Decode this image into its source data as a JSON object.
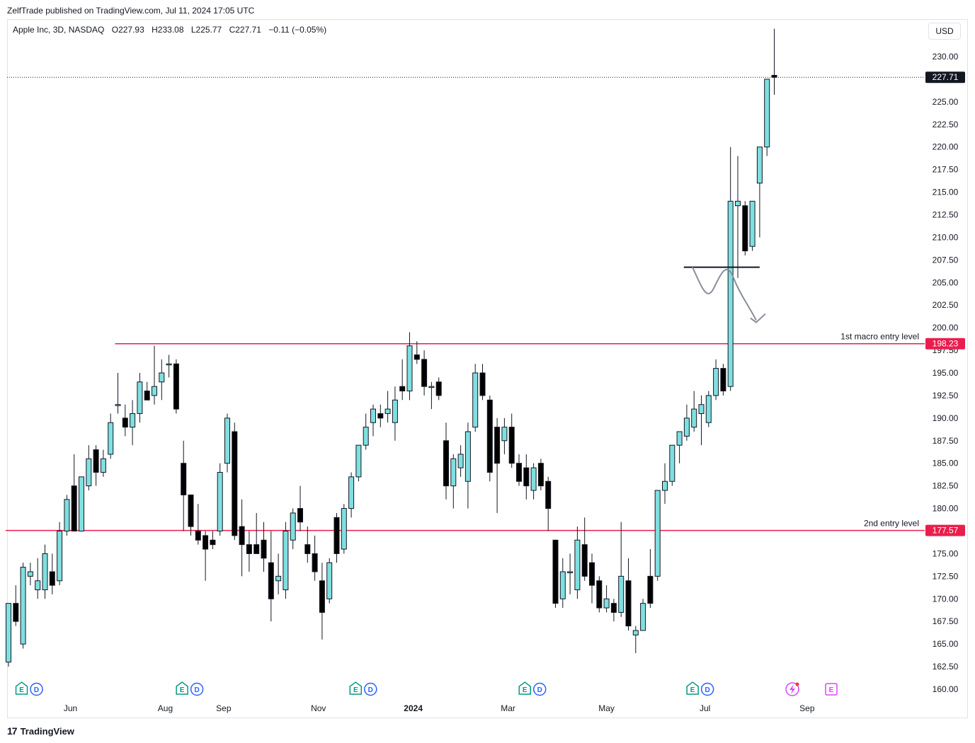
{
  "header": {
    "published": "ZelfTrade published on TradingView.com, Jul 11, 2024 17:05 UTC"
  },
  "legend": {
    "symbol": "Apple Inc, 3D, NASDAQ",
    "open": "O227.93",
    "high": "H233.08",
    "low": "L225.77",
    "close": "C227.71",
    "change": "−0.11 (−0.05%)"
  },
  "currency_button": "USD",
  "footer": {
    "brand": "TradingView"
  },
  "colors": {
    "up_body": "#80dfe0",
    "down_body": "#000000",
    "level_line": "#e91e4d",
    "price_tag": "#131722",
    "event_green": "#089981",
    "event_blue": "#2962ff",
    "event_purple": "#e040fb"
  },
  "event_icons": [
    "earnings-icon",
    "dividend-icon",
    "split-icon"
  ],
  "chart_data": {
    "type": "candlestick",
    "symbol": "Apple Inc, 3D, NASDAQ",
    "y_range": [
      160,
      233.5
    ],
    "y_ticks": [
      "160.00",
      "162.50",
      "165.00",
      "167.50",
      "170.00",
      "172.50",
      "175.00",
      "177.50",
      "180.00",
      "182.50",
      "185.00",
      "187.50",
      "190.00",
      "192.50",
      "195.00",
      "197.50",
      "200.00",
      "202.50",
      "205.00",
      "207.50",
      "210.00",
      "212.50",
      "215.00",
      "217.50",
      "220.00",
      "222.50",
      "225.00",
      "227.50",
      "230.00"
    ],
    "x_labels": [
      {
        "label": "Jun",
        "bar": 8.5
      },
      {
        "label": "Aug",
        "bar": 21.5
      },
      {
        "label": "Sep",
        "bar": 29.5
      },
      {
        "label": "Nov",
        "bar": 42.5
      },
      {
        "label": "2024",
        "bar": 55.5,
        "bold": true
      },
      {
        "label": "Mar",
        "bar": 68.5
      },
      {
        "label": "May",
        "bar": 82
      },
      {
        "label": "Jul",
        "bar": 95.5
      },
      {
        "label": "Sep",
        "bar": 109.5
      }
    ],
    "last_price": {
      "value": 227.71,
      "label": "227.71"
    },
    "levels": [
      {
        "value": 198.23,
        "label": "198.23",
        "text": "1st macro entry level",
        "from_bar": 15
      },
      {
        "value": 177.57,
        "label": "177.57",
        "text": "2nd entry level",
        "from_bar": 0
      }
    ],
    "support_line": {
      "value": 206.7,
      "from_bar": 92.6,
      "to_bar": 103
    },
    "candles": [
      {
        "o": 163,
        "h": 169.5,
        "l": 162.5,
        "c": 169.5
      },
      {
        "o": 169.5,
        "h": 171.5,
        "l": 167,
        "c": 167.5
      },
      {
        "o": 165,
        "h": 174,
        "l": 164.5,
        "c": 173.5
      },
      {
        "o": 172.5,
        "h": 174,
        "l": 171.5,
        "c": 173
      },
      {
        "o": 171,
        "h": 174.5,
        "l": 170,
        "c": 172
      },
      {
        "o": 171,
        "h": 176,
        "l": 170,
        "c": 175
      },
      {
        "o": 173,
        "h": 175,
        "l": 170.5,
        "c": 171.5
      },
      {
        "o": 172,
        "h": 178.5,
        "l": 171.5,
        "c": 177.5
      },
      {
        "o": 177.5,
        "h": 181.5,
        "l": 177,
        "c": 181
      },
      {
        "o": 182.5,
        "h": 186,
        "l": 177.5,
        "c": 177.5
      },
      {
        "o": 177.5,
        "h": 183.5,
        "l": 177.5,
        "c": 183.5
      },
      {
        "o": 182.5,
        "h": 187,
        "l": 182,
        "c": 185.5
      },
      {
        "o": 186.5,
        "h": 187,
        "l": 182.5,
        "c": 184
      },
      {
        "o": 184,
        "h": 186.5,
        "l": 183.5,
        "c": 185.5
      },
      {
        "o": 186,
        "h": 190.5,
        "l": 185.5,
        "c": 189.5
      },
      {
        "o": 191.5,
        "h": 195,
        "l": 190.5,
        "c": 191.5
      },
      {
        "o": 190,
        "h": 191.5,
        "l": 188,
        "c": 189
      },
      {
        "o": 189,
        "h": 192,
        "l": 187,
        "c": 190.5
      },
      {
        "o": 190.5,
        "h": 195,
        "l": 189.5,
        "c": 194
      },
      {
        "o": 193,
        "h": 194,
        "l": 192,
        "c": 192
      },
      {
        "o": 192.5,
        "h": 198,
        "l": 191.5,
        "c": 193.5
      },
      {
        "o": 194,
        "h": 196.5,
        "l": 192,
        "c": 195
      },
      {
        "o": 196,
        "h": 197,
        "l": 194.5,
        "c": 196
      },
      {
        "o": 196,
        "h": 196.5,
        "l": 190.5,
        "c": 191
      },
      {
        "o": 185,
        "h": 187.5,
        "l": 177.5,
        "c": 181.5
      },
      {
        "o": 181.5,
        "h": 181.5,
        "l": 177,
        "c": 178
      },
      {
        "o": 177.5,
        "h": 180.5,
        "l": 176,
        "c": 176.5
      },
      {
        "o": 177,
        "h": 177.5,
        "l": 172,
        "c": 175.5
      },
      {
        "o": 176.5,
        "h": 177.5,
        "l": 175.5,
        "c": 176
      },
      {
        "o": 177.5,
        "h": 185,
        "l": 177,
        "c": 184
      },
      {
        "o": 185,
        "h": 190.5,
        "l": 184,
        "c": 190
      },
      {
        "o": 188.5,
        "h": 189.5,
        "l": 176.5,
        "c": 177
      },
      {
        "o": 178,
        "h": 181,
        "l": 172.5,
        "c": 176
      },
      {
        "o": 176,
        "h": 177.5,
        "l": 173,
        "c": 175
      },
      {
        "o": 176,
        "h": 179.5,
        "l": 175,
        "c": 175
      },
      {
        "o": 176.5,
        "h": 178.5,
        "l": 173,
        "c": 174.5
      },
      {
        "o": 174,
        "h": 177.5,
        "l": 167.5,
        "c": 170
      },
      {
        "o": 172,
        "h": 175,
        "l": 170.5,
        "c": 172.5
      },
      {
        "o": 171,
        "h": 178.5,
        "l": 170,
        "c": 177.5
      },
      {
        "o": 176.5,
        "h": 180,
        "l": 175.5,
        "c": 179.5
      },
      {
        "o": 180,
        "h": 182.5,
        "l": 177.5,
        "c": 178.5
      },
      {
        "o": 176,
        "h": 178,
        "l": 174,
        "c": 175
      },
      {
        "o": 175,
        "h": 177,
        "l": 172,
        "c": 173
      },
      {
        "o": 172,
        "h": 174,
        "l": 165.5,
        "c": 168.5
      },
      {
        "o": 170,
        "h": 174.5,
        "l": 169.5,
        "c": 174
      },
      {
        "o": 179,
        "h": 179.5,
        "l": 174,
        "c": 175
      },
      {
        "o": 175.5,
        "h": 180.5,
        "l": 175,
        "c": 180
      },
      {
        "o": 180,
        "h": 184,
        "l": 179,
        "c": 183.5
      },
      {
        "o": 183.5,
        "h": 186.5,
        "l": 183,
        "c": 187
      },
      {
        "o": 187,
        "h": 190.5,
        "l": 186.5,
        "c": 189
      },
      {
        "o": 189.5,
        "h": 191.5,
        "l": 188,
        "c": 191
      },
      {
        "o": 190.5,
        "h": 191.5,
        "l": 189,
        "c": 190
      },
      {
        "o": 190.5,
        "h": 193,
        "l": 189.5,
        "c": 191
      },
      {
        "o": 189.5,
        "h": 193.5,
        "l": 187.5,
        "c": 192
      },
      {
        "o": 193.5,
        "h": 196.5,
        "l": 192,
        "c": 193
      },
      {
        "o": 193,
        "h": 199.5,
        "l": 192,
        "c": 198
      },
      {
        "o": 197,
        "h": 198.5,
        "l": 196,
        "c": 196.5
      },
      {
        "o": 196.5,
        "h": 197.5,
        "l": 192.5,
        "c": 193.5
      },
      {
        "o": 193.5,
        "h": 194,
        "l": 191,
        "c": 193.5
      },
      {
        "o": 194,
        "h": 194.5,
        "l": 192,
        "c": 192.5
      },
      {
        "o": 187.5,
        "h": 189.5,
        "l": 181,
        "c": 182.5
      },
      {
        "o": 182.5,
        "h": 186,
        "l": 180,
        "c": 185.5
      },
      {
        "o": 184.5,
        "h": 187,
        "l": 183.5,
        "c": 186
      },
      {
        "o": 183,
        "h": 189.5,
        "l": 180,
        "c": 188.5
      },
      {
        "o": 189,
        "h": 196,
        "l": 188.5,
        "c": 195
      },
      {
        "o": 195,
        "h": 196,
        "l": 192,
        "c": 192.5
      },
      {
        "o": 192,
        "h": 192.5,
        "l": 183,
        "c": 184
      },
      {
        "o": 189,
        "h": 190,
        "l": 179.5,
        "c": 185
      },
      {
        "o": 187.5,
        "h": 190,
        "l": 186,
        "c": 189
      },
      {
        "o": 189,
        "h": 190.5,
        "l": 184.5,
        "c": 185
      },
      {
        "o": 185,
        "h": 186,
        "l": 182.5,
        "c": 183
      },
      {
        "o": 184.5,
        "h": 186,
        "l": 181,
        "c": 182.5
      },
      {
        "o": 182,
        "h": 185,
        "l": 181,
        "c": 184.5
      },
      {
        "o": 185,
        "h": 185.5,
        "l": 182,
        "c": 182.5
      },
      {
        "o": 183,
        "h": 183.5,
        "l": 177.5,
        "c": 180
      },
      {
        "o": 176.5,
        "h": 176.5,
        "l": 169,
        "c": 169.5
      },
      {
        "o": 170,
        "h": 174.5,
        "l": 169,
        "c": 173
      },
      {
        "o": 173,
        "h": 175,
        "l": 170.5,
        "c": 173
      },
      {
        "o": 171,
        "h": 178,
        "l": 170,
        "c": 176.5
      },
      {
        "o": 176,
        "h": 179,
        "l": 172,
        "c": 172.5
      },
      {
        "o": 174,
        "h": 175,
        "l": 169.5,
        "c": 171.5
      },
      {
        "o": 172,
        "h": 172.5,
        "l": 168.5,
        "c": 169
      },
      {
        "o": 169,
        "h": 171.5,
        "l": 168.5,
        "c": 170
      },
      {
        "o": 169.5,
        "h": 170,
        "l": 167.5,
        "c": 168.5
      },
      {
        "o": 168.5,
        "h": 178.5,
        "l": 168,
        "c": 172.5
      },
      {
        "o": 172,
        "h": 174.5,
        "l": 166.5,
        "c": 167
      },
      {
        "o": 166,
        "h": 167,
        "l": 164,
        "c": 166.5
      },
      {
        "o": 166.5,
        "h": 170,
        "l": 166.5,
        "c": 169.5
      },
      {
        "o": 172.5,
        "h": 175.5,
        "l": 169,
        "c": 169.5
      },
      {
        "o": 172.5,
        "h": 182,
        "l": 172,
        "c": 182
      },
      {
        "o": 182,
        "h": 185,
        "l": 180.5,
        "c": 183
      },
      {
        "o": 183,
        "h": 187,
        "l": 182.5,
        "c": 187
      },
      {
        "o": 187,
        "h": 188.5,
        "l": 185,
        "c": 188.5
      },
      {
        "o": 188,
        "h": 191.5,
        "l": 187.5,
        "c": 190
      },
      {
        "o": 189,
        "h": 193,
        "l": 188.5,
        "c": 191
      },
      {
        "o": 190.5,
        "h": 192.5,
        "l": 187,
        "c": 191.5
      },
      {
        "o": 189.5,
        "h": 193,
        "l": 189,
        "c": 192.5
      },
      {
        "o": 192.5,
        "h": 196.5,
        "l": 192,
        "c": 195.5
      },
      {
        "o": 195.5,
        "h": 196,
        "l": 192.5,
        "c": 193
      },
      {
        "o": 193.5,
        "h": 220,
        "l": 193,
        "c": 214
      },
      {
        "o": 213.5,
        "h": 219,
        "l": 205.5,
        "c": 214
      },
      {
        "o": 213.5,
        "h": 214,
        "l": 208,
        "c": 208.5
      },
      {
        "o": 209,
        "h": 214,
        "l": 208.5,
        "c": 214
      },
      {
        "o": 216,
        "h": 220,
        "l": 210,
        "c": 220
      },
      {
        "o": 220,
        "h": 227.5,
        "l": 219,
        "c": 227.5
      },
      {
        "o": 227.93,
        "h": 233.08,
        "l": 225.77,
        "c": 227.71
      }
    ]
  }
}
